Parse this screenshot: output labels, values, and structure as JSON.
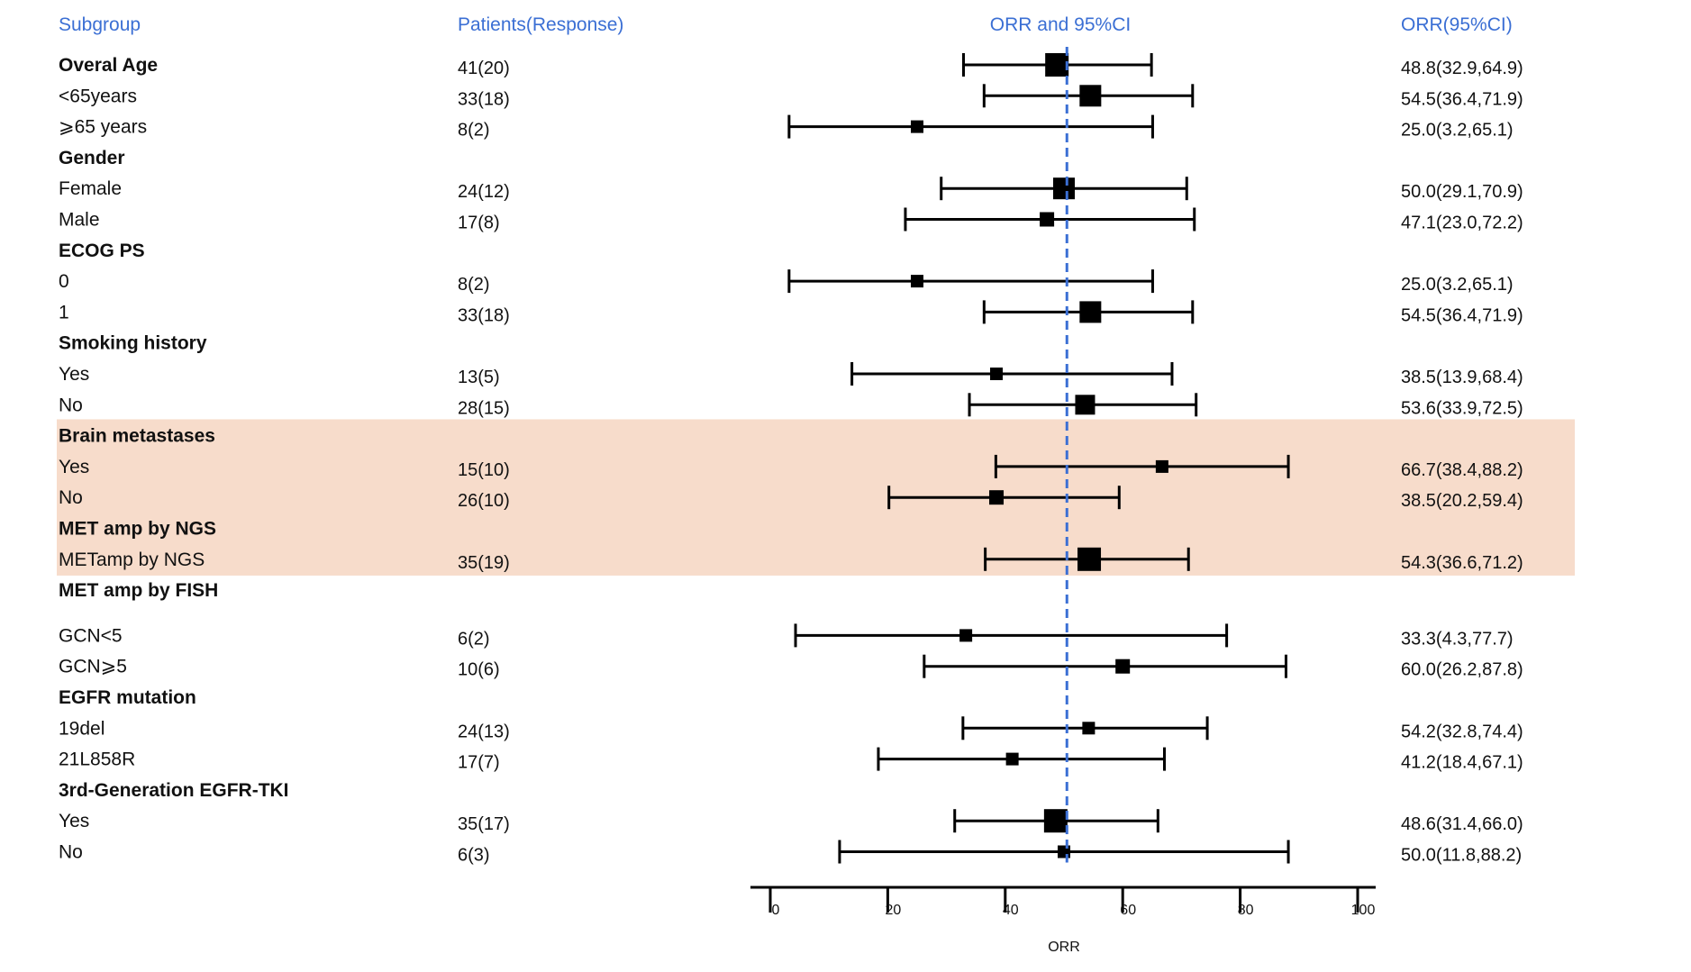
{
  "chart_data": {
    "type": "forest",
    "headers": {
      "subgroup": "Subgroup",
      "patients": "Patients(Response)",
      "plot": "ORR and 95%CI",
      "estimate": "ORR(95%CI)"
    },
    "xlabel": "ORR",
    "xlim": [
      0,
      100
    ],
    "xticks": [
      0,
      20,
      40,
      60,
      80,
      100
    ],
    "reference_line": 50.5,
    "highlight_rows": [
      12,
      16
    ],
    "colors": {
      "header": "#3b6fd4",
      "reference": "#3b6fd4",
      "highlight": "#f7dccb",
      "marks": "#000000"
    },
    "rows": [
      {
        "label": "Overal Age",
        "header": true,
        "patients": "41(20)",
        "estimate": 48.8,
        "lo": 32.9,
        "hi": 64.9,
        "ci_text": "48.8(32.9,64.9)",
        "size": 26
      },
      {
        "label": "<65years",
        "patients": "33(18)",
        "estimate": 54.5,
        "lo": 36.4,
        "hi": 71.9,
        "ci_text": "54.5(36.4,71.9)",
        "size": 24
      },
      {
        "label": "⩾65 years",
        "patients": "8(2)",
        "estimate": 25.0,
        "lo": 3.2,
        "hi": 65.1,
        "ci_text": "25.0(3.2,65.1)",
        "size": 14
      },
      {
        "label": "Gender",
        "header": true
      },
      {
        "label": "Female",
        "patients": "24(12)",
        "estimate": 50.0,
        "lo": 29.1,
        "hi": 70.9,
        "ci_text": "50.0(29.1,70.9)",
        "size": 24
      },
      {
        "label": "Male",
        "patients": "17(8)",
        "estimate": 47.1,
        "lo": 23.0,
        "hi": 72.2,
        "ci_text": "47.1(23.0,72.2)",
        "size": 16
      },
      {
        "label": "ECOG PS",
        "header": true
      },
      {
        "label": "0",
        "patients": "8(2)",
        "estimate": 25.0,
        "lo": 3.2,
        "hi": 65.1,
        "ci_text": "25.0(3.2,65.1)",
        "size": 14
      },
      {
        "label": "1",
        "patients": "33(18)",
        "estimate": 54.5,
        "lo": 36.4,
        "hi": 71.9,
        "ci_text": "54.5(36.4,71.9)",
        "size": 24
      },
      {
        "label": "Smoking history",
        "header": true
      },
      {
        "label": "Yes",
        "patients": "13(5)",
        "estimate": 38.5,
        "lo": 13.9,
        "hi": 68.4,
        "ci_text": "38.5(13.9,68.4)",
        "size": 14
      },
      {
        "label": "No",
        "patients": "28(15)",
        "estimate": 53.6,
        "lo": 33.9,
        "hi": 72.5,
        "ci_text": "53.6(33.9,72.5)",
        "size": 22
      },
      {
        "label": " Brain   metastases",
        "header": true
      },
      {
        "label": "Yes",
        "patients": "15(10)",
        "estimate": 66.7,
        "lo": 38.4,
        "hi": 88.2,
        "ci_text": "66.7(38.4,88.2)",
        "size": 14
      },
      {
        "label": "No",
        "patients": "26(10)",
        "estimate": 38.5,
        "lo": 20.2,
        "hi": 59.4,
        "ci_text": "38.5(20.2,59.4)",
        "size": 16
      },
      {
        "label": "MET amp by NGS",
        "header": true
      },
      {
        "label": "METamp by NGS",
        "patients": "35(19)",
        "estimate": 54.3,
        "lo": 36.6,
        "hi": 71.2,
        "ci_text": "54.3(36.6,71.2)",
        "size": 26
      },
      {
        "label": "MET amp by FISH",
        "header": true
      },
      {
        "label": "GCN<5",
        "patients": "6(2)",
        "estimate": 33.3,
        "lo": 4.3,
        "hi": 77.7,
        "ci_text": "33.3(4.3,77.7)",
        "size": 14,
        "gap": "fish"
      },
      {
        "label": "GCN⩾5",
        "patients": "10(6)",
        "estimate": 60.0,
        "lo": 26.2,
        "hi": 87.8,
        "ci_text": "60.0(26.2,87.8)",
        "size": 16
      },
      {
        "label": " EGFR  mutation",
        "header": true
      },
      {
        "label": "19del",
        "patients": "24(13)",
        "estimate": 54.2,
        "lo": 32.8,
        "hi": 74.4,
        "ci_text": "54.2(32.8,74.4)",
        "size": 14
      },
      {
        "label": "21L858R",
        "patients": "17(7)",
        "estimate": 41.2,
        "lo": 18.4,
        "hi": 67.1,
        "ci_text": "41.2(18.4,67.1)",
        "size": 14
      },
      {
        "label": "3rd-Generation   EGFR-TKI",
        "header": true
      },
      {
        "label": "Yes",
        "patients": "35(17)",
        "estimate": 48.6,
        "lo": 31.4,
        "hi": 66.0,
        "ci_text": "48.6(31.4,66.0)",
        "size": 26
      },
      {
        "label": "No",
        "patients": "6(3)",
        "estimate": 50.0,
        "lo": 11.8,
        "hi": 88.2,
        "ci_text": "50.0(11.8,88.2)",
        "size": 14
      }
    ]
  }
}
